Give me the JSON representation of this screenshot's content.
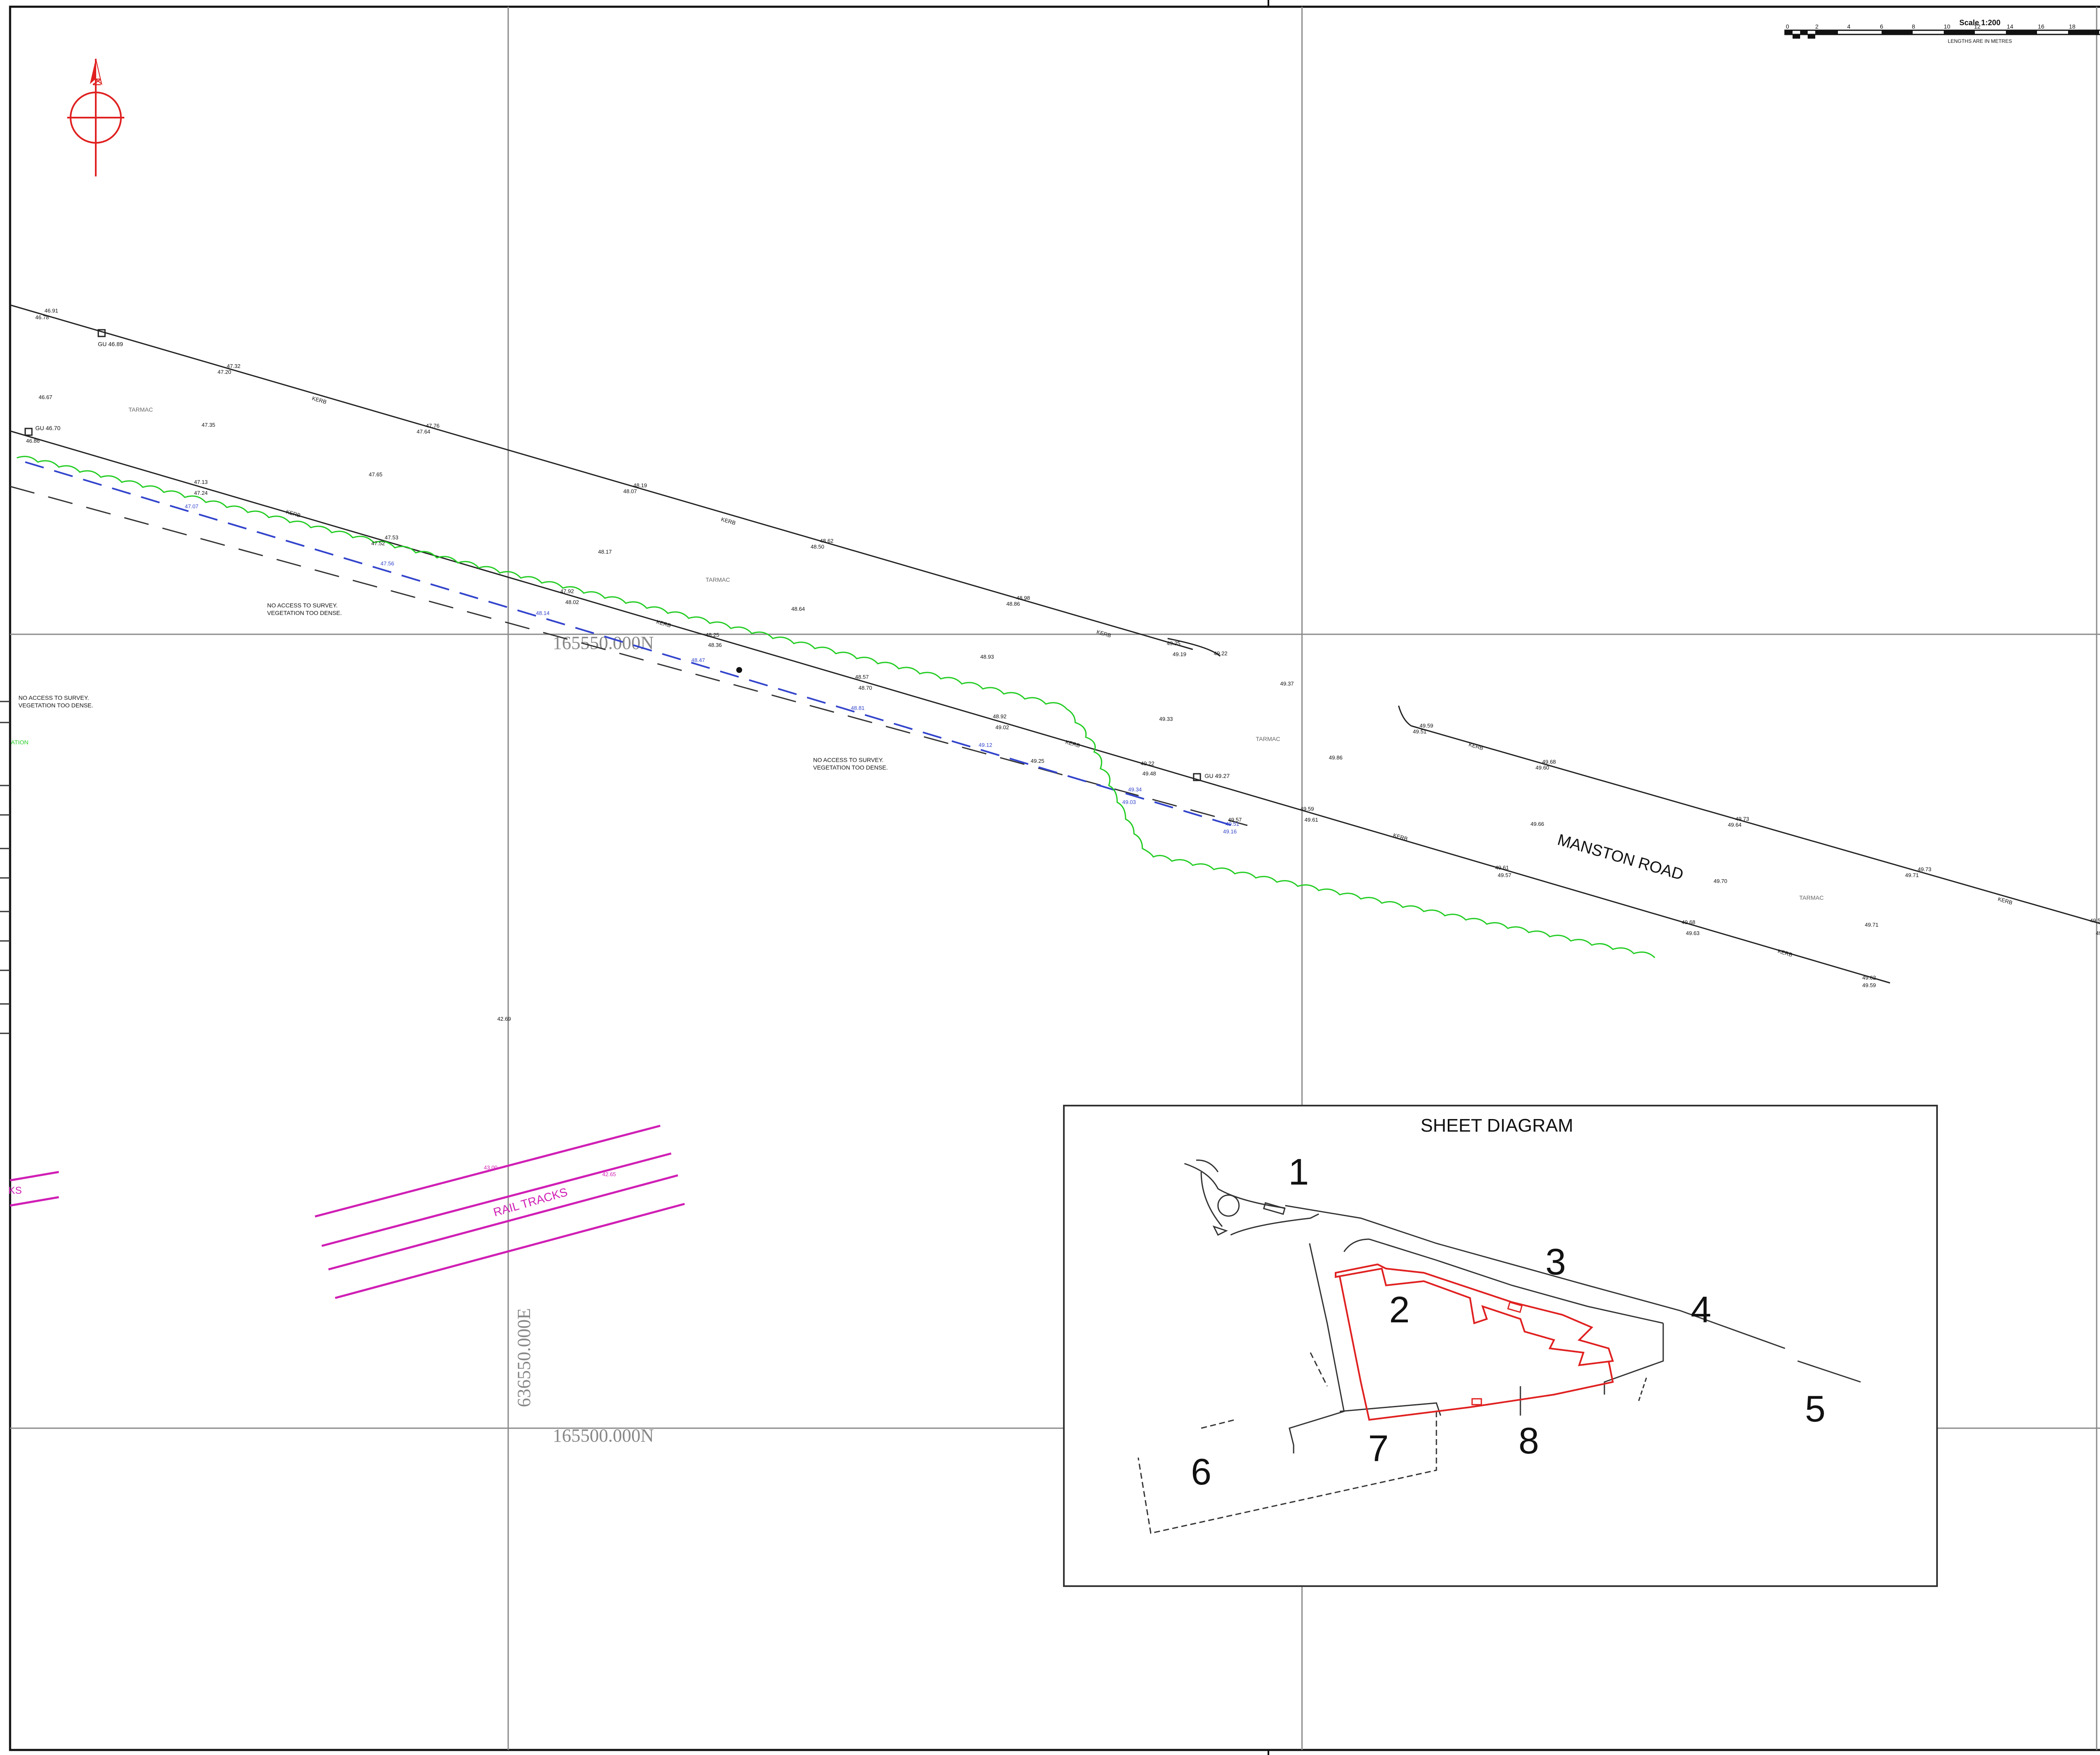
{
  "colors": {
    "background": "#ffffff",
    "linework": "#222222",
    "grid": "#888888",
    "north_arrow": "#e02020",
    "vegetation": "#22cc22",
    "water_dashed": "#3344cc",
    "rail": "#d01fb5",
    "building_outline": "#e02020"
  },
  "scale_bar": {
    "title": "Scale 1:200",
    "subtitle": "LENGTHS ARE IN METRES",
    "ticks": [
      "0",
      "2",
      "4",
      "6",
      "8",
      "10",
      "12",
      "14",
      "16",
      "18",
      "2"
    ]
  },
  "north_arrow": {
    "label": "N",
    "icon": "north-arrow-icon"
  },
  "grid": {
    "north_labels": [
      "165550.000N",
      "165500.000N"
    ],
    "east_label": "636550.000E"
  },
  "labels": {
    "tarmac": "TARMAC",
    "kerb": "KERB",
    "road_name": "MANSTON ROAD",
    "rail_tracks": "RAIL TRACKS",
    "rail_tracks_partial": "KS",
    "vegetation_partial": "ATION",
    "no_access": [
      "NO ACCESS TO SURVEY.",
      "VEGETATION TOO DENSE."
    ],
    "gully_1": "GU 46.89",
    "gully_2": "GU 46.70",
    "gully_3": "GU 49.27"
  },
  "spot_levels": {
    "upper_kerb": [
      "46.91",
      "46.78",
      "47.32",
      "47.20",
      "47.76",
      "47.64",
      "48.19",
      "48.07",
      "48.62",
      "48.50",
      "48.98",
      "48.86",
      "49.25",
      "49.19",
      "49.22"
    ],
    "lower_kerb": [
      "46.86",
      "47.13",
      "47.24",
      "47.53",
      "47.52",
      "47.92",
      "48.02",
      "48.25",
      "48.36",
      "48.57",
      "48.70",
      "48.92",
      "49.02",
      "49.25",
      "49.22",
      "49.48",
      "49.59",
      "49.61",
      "49.57"
    ],
    "tarmac_points": [
      "46.67",
      "47.35",
      "47.65",
      "48.17",
      "48.64",
      "48.93",
      "49.33",
      "49.37",
      "49.86"
    ],
    "blue_line": [
      "47.07",
      "47.56",
      "48.14",
      "48.47",
      "48.81",
      "49.12",
      "49.34",
      "49.03",
      "49.51",
      "49.16"
    ],
    "manston_north": [
      "49.59",
      "49.51",
      "49.68",
      "49.60",
      "49.73",
      "49.64",
      "49.73",
      "49.71",
      "49.51",
      "49.49"
    ],
    "manston_south": [
      "49.66",
      "49.70",
      "49.71",
      "49.61",
      "49.57",
      "49.68",
      "49.63",
      "49.62",
      "49.59"
    ],
    "misc": [
      "42.69",
      "43.00",
      "42.65"
    ]
  },
  "sheet_diagram": {
    "title": "SHEET DIAGRAM",
    "sheets": [
      "1",
      "2",
      "3",
      "4",
      "5",
      "6",
      "7",
      "8"
    ]
  }
}
